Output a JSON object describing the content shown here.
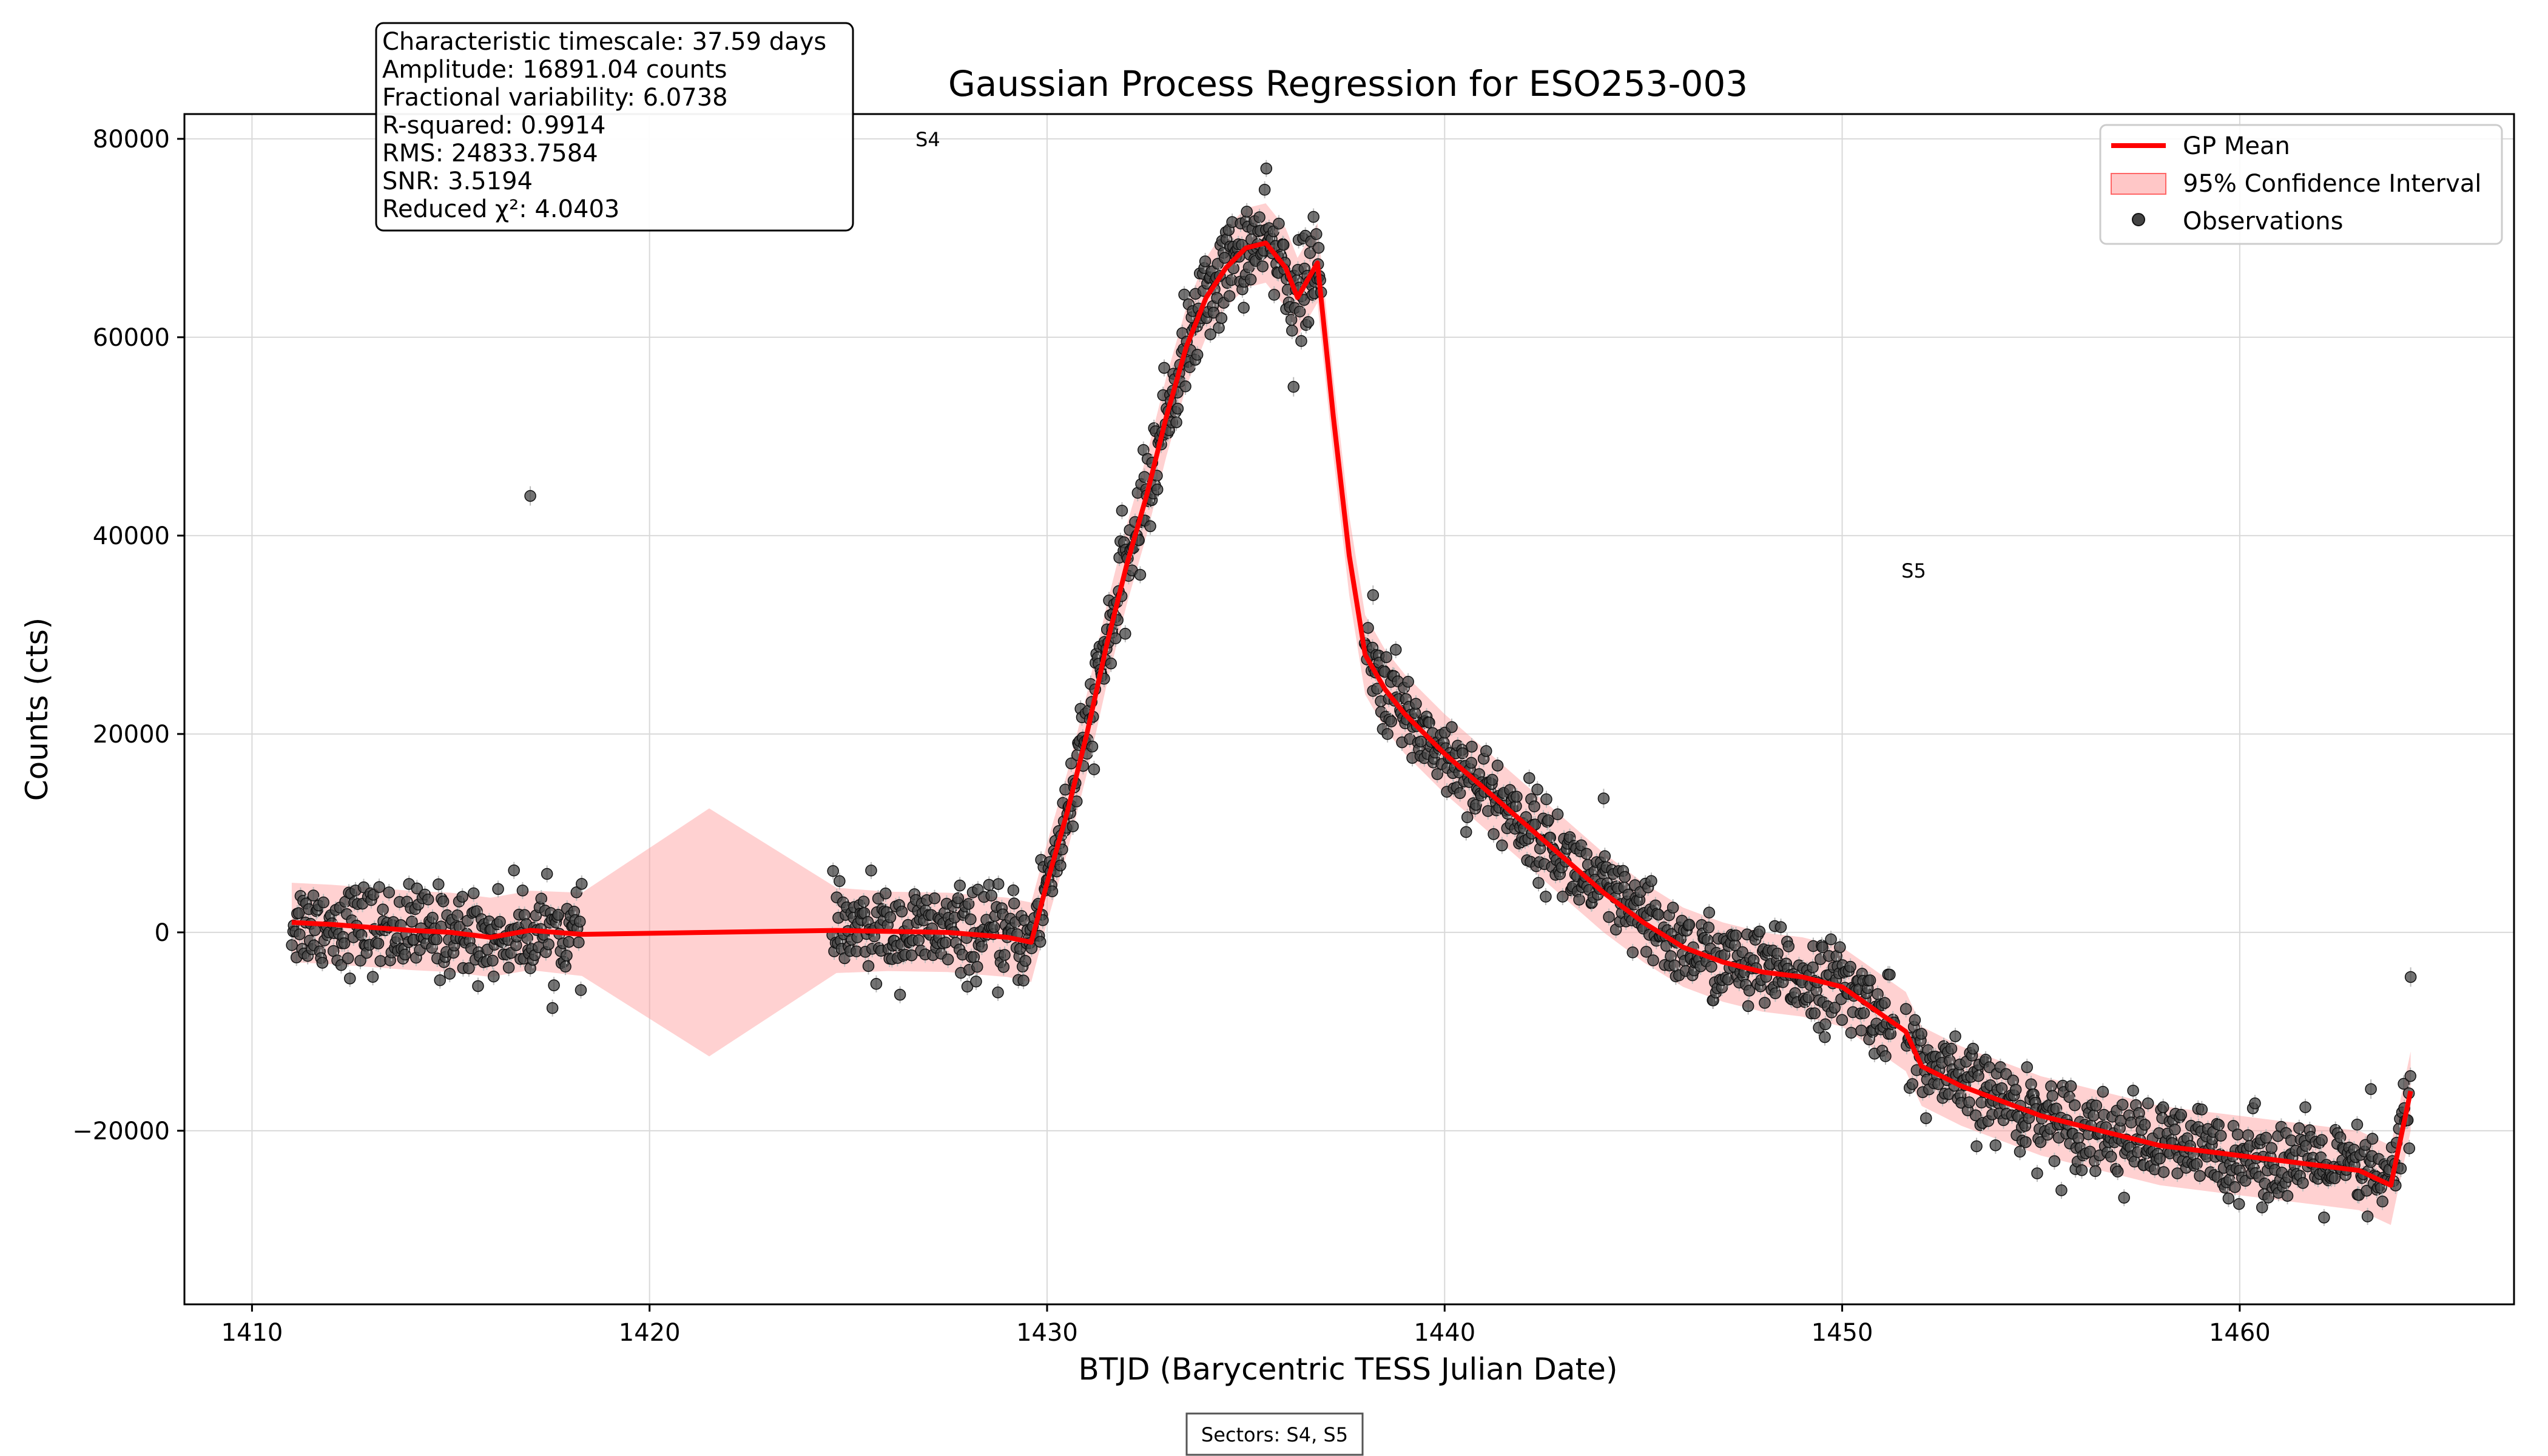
{
  "chart_data": {
    "type": "scatter",
    "title": "Gaussian Process Regression for ESO253-003",
    "xlabel": "BTJD (Barycentric TESS Julian Date)",
    "ylabel": "Counts (cts)",
    "xlim": [
      1408.3,
      1466.9
    ],
    "ylim": [
      -37500,
      82500
    ],
    "xticks": [
      1410,
      1420,
      1430,
      1440,
      1450,
      1460
    ],
    "yticks": [
      -20000,
      0,
      20000,
      40000,
      60000,
      80000
    ],
    "ytick_labels": [
      "−20000",
      "0",
      "20000",
      "40000",
      "60000",
      "80000"
    ],
    "grid": true,
    "legend_position": "top-right",
    "legend": [
      {
        "label": "GP Mean",
        "kind": "line",
        "color": "#ff0000"
      },
      {
        "label": "95% Confidence Interval",
        "kind": "band",
        "color": "#ff9999"
      },
      {
        "label": "Observations",
        "kind": "marker",
        "color": "#333333"
      }
    ],
    "stats": [
      "Characteristic timescale: 37.59 days",
      "Amplitude: 16891.04 counts",
      "Fractional variability: 6.0738",
      "R-squared: 0.9914",
      "RMS: 24833.7584",
      "SNR: 3.5194",
      "Reduced χ²: 4.0403"
    ],
    "sector_labels": [
      {
        "text": "S4",
        "x": 1427.0,
        "y": 80000
      },
      {
        "text": "S5",
        "x": 1451.8,
        "y": 36500
      }
    ],
    "footer": "Sectors: S4, S5",
    "series": [
      {
        "name": "GP Mean",
        "kind": "line",
        "color": "#ff0000",
        "x": [
          1411.0,
          1412.0,
          1413.0,
          1414.0,
          1415.0,
          1416.0,
          1417.0,
          1418.3,
          1421.5,
          1424.7,
          1426.0,
          1427.5,
          1429.0,
          1429.6,
          1430.0,
          1430.5,
          1431.0,
          1431.5,
          1432.0,
          1432.5,
          1433.0,
          1433.5,
          1434.0,
          1434.5,
          1435.0,
          1435.5,
          1436.0,
          1436.3,
          1436.8,
          1437.2,
          1437.6,
          1438.0,
          1438.5,
          1439.0,
          1440.0,
          1441.0,
          1442.0,
          1443.0,
          1444.0,
          1445.0,
          1446.0,
          1447.0,
          1448.0,
          1449.0,
          1450.0,
          1451.6,
          1452.0,
          1453.0,
          1454.0,
          1455.0,
          1456.0,
          1457.0,
          1458.0,
          1459.0,
          1460.0,
          1461.0,
          1462.0,
          1463.0,
          1463.8,
          1464.3
        ],
        "y": [
          1000,
          800,
          500,
          200,
          0,
          -500,
          200,
          -200,
          0,
          200,
          100,
          0,
          -500,
          -1000,
          5000,
          12000,
          20000,
          29000,
          37000,
          44000,
          52000,
          59000,
          64000,
          67000,
          69000,
          69500,
          67000,
          64000,
          67500,
          52000,
          38000,
          28000,
          24500,
          22000,
          18000,
          14500,
          11000,
          7500,
          4000,
          1000,
          -1500,
          -3000,
          -4000,
          -4500,
          -5500,
          -10000,
          -13500,
          -15500,
          -17000,
          -18500,
          -19500,
          -20500,
          -21500,
          -22000,
          -22500,
          -23000,
          -23500,
          -24000,
          -25500,
          -16000
        ]
      },
      {
        "name": "95% Confidence Interval",
        "kind": "band",
        "color": "#ff9999",
        "x": [
          1411.0,
          1412.0,
          1413.0,
          1414.0,
          1415.0,
          1416.0,
          1417.0,
          1418.3,
          1421.5,
          1424.7,
          1426.0,
          1427.5,
          1429.0,
          1429.6,
          1430.0,
          1430.5,
          1431.0,
          1431.5,
          1432.0,
          1432.5,
          1433.0,
          1433.5,
          1434.0,
          1434.5,
          1435.0,
          1435.5,
          1436.0,
          1436.3,
          1436.8,
          1437.2,
          1437.6,
          1438.0,
          1438.5,
          1439.0,
          1440.0,
          1441.0,
          1442.0,
          1443.0,
          1444.0,
          1445.0,
          1446.0,
          1447.0,
          1448.0,
          1449.0,
          1450.0,
          1451.6,
          1452.0,
          1453.0,
          1454.0,
          1455.0,
          1456.0,
          1457.0,
          1458.0,
          1459.0,
          1460.0,
          1461.0,
          1462.0,
          1463.0,
          1463.8,
          1464.3
        ],
        "y_upper": [
          5000,
          4800,
          4500,
          4200,
          4000,
          3500,
          4200,
          4000,
          12500,
          4500,
          4100,
          4000,
          3500,
          3000,
          9000,
          16000,
          24000,
          33000,
          41000,
          48000,
          56000,
          63000,
          68000,
          71000,
          73000,
          73500,
          71000,
          68000,
          71500,
          56000,
          42000,
          32000,
          28500,
          26000,
          22000,
          18500,
          15000,
          11500,
          8000,
          5000,
          2500,
          1000,
          0,
          -500,
          -1500,
          -6000,
          -9500,
          -11500,
          -13000,
          -14500,
          -15500,
          -16500,
          -17500,
          -18000,
          -18500,
          -19000,
          -19500,
          -20000,
          -21500,
          -12000
        ],
        "y_lower": [
          -3000,
          -3200,
          -3500,
          -3800,
          -4000,
          -4500,
          -3800,
          -4400,
          -12500,
          -4100,
          -3900,
          -4000,
          -4500,
          -5000,
          1000,
          8000,
          16000,
          25000,
          33000,
          40000,
          48000,
          55000,
          60000,
          63000,
          65000,
          65500,
          63000,
          60000,
          63500,
          48000,
          34000,
          24000,
          20500,
          18000,
          14000,
          10500,
          7000,
          3500,
          0,
          -3000,
          -5500,
          -7000,
          -8000,
          -8500,
          -9500,
          -14000,
          -17500,
          -19500,
          -21000,
          -22500,
          -23500,
          -24500,
          -25500,
          -26000,
          -26500,
          -27000,
          -27500,
          -28000,
          -29500,
          -20000
        ]
      },
      {
        "name": "Observations",
        "kind": "scatter",
        "color": "#333333",
        "segments": [
          {
            "x_start": 1411.0,
            "x_end": 1418.3,
            "count": 260,
            "noise": 2200
          },
          {
            "x_start": 1424.6,
            "x_end": 1429.8,
            "count": 200,
            "noise": 2200
          },
          {
            "x_start": 1429.8,
            "x_end": 1436.9,
            "count": 320,
            "noise": 2400
          },
          {
            "x_start": 1438.0,
            "x_end": 1451.3,
            "count": 520,
            "noise": 2100
          },
          {
            "x_start": 1451.6,
            "x_end": 1464.3,
            "count": 480,
            "noise": 2100
          }
        ],
        "outliers": [
          {
            "x": 1417.0,
            "y": 44000
          },
          {
            "x": 1464.3,
            "y": -4500
          },
          {
            "x": 1436.2,
            "y": 55000
          },
          {
            "x": 1438.2,
            "y": 34000
          },
          {
            "x": 1444.0,
            "y": 13500
          },
          {
            "x": 1463.3,
            "y": -15800
          }
        ]
      }
    ]
  }
}
